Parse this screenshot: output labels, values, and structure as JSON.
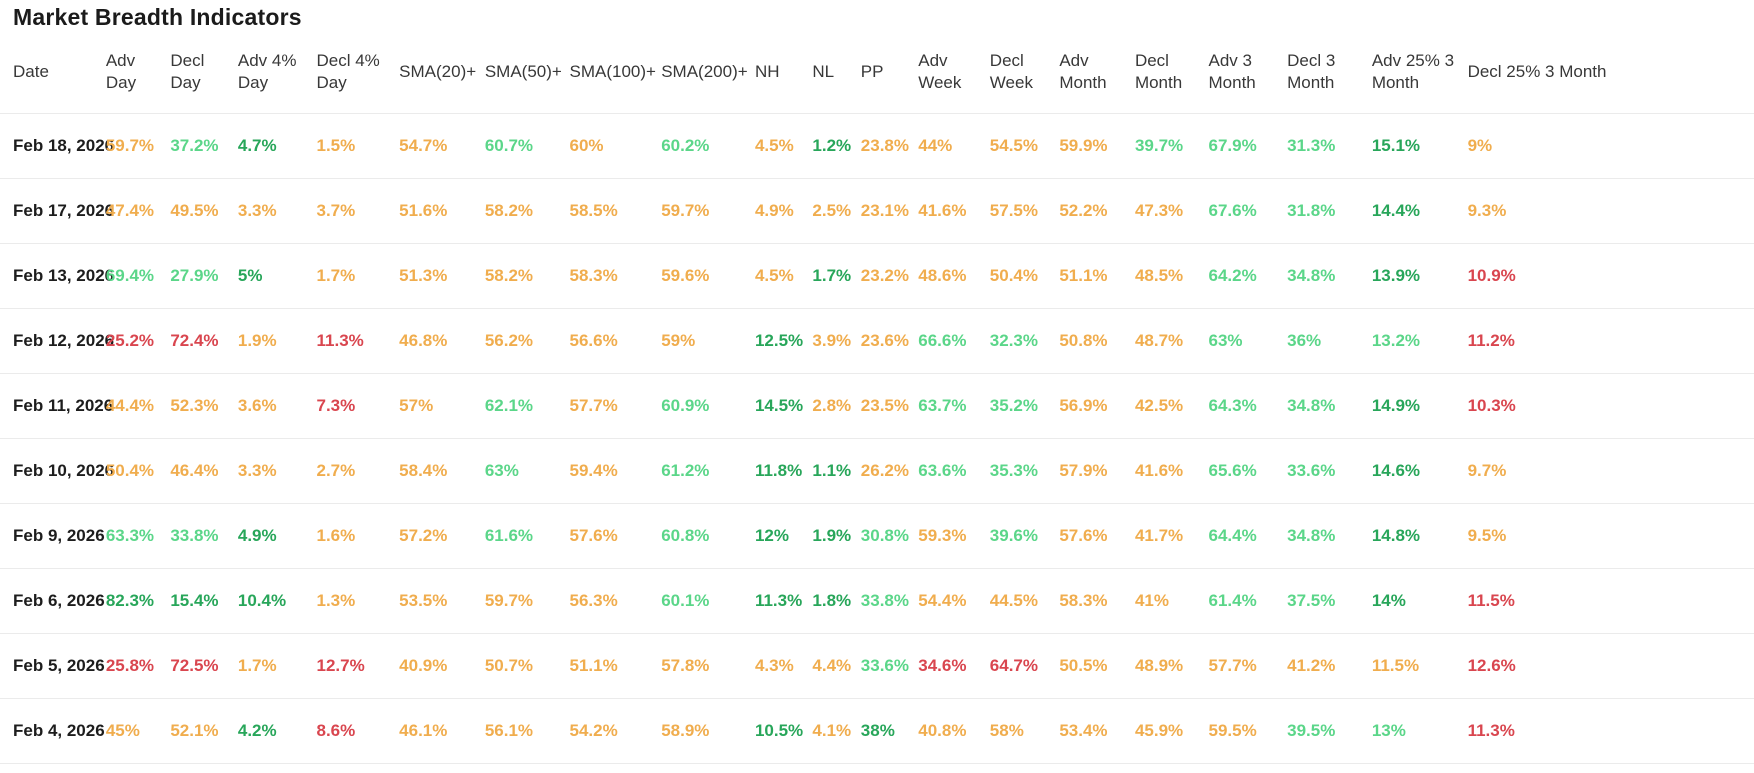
{
  "page_title": "Market Breadth Indicators",
  "colors": {
    "r": "#d9464f",
    "o": "#f0ad4e",
    "g": "#5bd689",
    "G": "#28a65a",
    "date_text": "#1d1d1d",
    "header_text": "#383838",
    "title_text": "#1b1b1b",
    "divider": "#ebebeb",
    "background": "#ffffff"
  },
  "chart_data": {
    "type": "table",
    "title": "Market Breadth Indicators",
    "columns": [
      "Date",
      "Adv Day",
      "Decl Day",
      "Adv 4% Day",
      "Decl 4% Day",
      "SMA(20)+",
      "SMA(50)+",
      "SMA(100)+",
      "SMA(200)+",
      "NH",
      "NL",
      "PP",
      "Adv Week",
      "Decl Week",
      "Adv Month",
      "Decl Month",
      "Adv 3 Month",
      "Decl 3 Month",
      "Adv 25% 3 Month",
      "Decl 25% 3 Month"
    ],
    "color_legend": {
      "r": "red (bearish)",
      "o": "orange (neutral)",
      "g": "light green (bullish)",
      "G": "dark green (strong bullish)"
    },
    "rows": [
      {
        "date": "Feb 18, 2026",
        "cells": [
          [
            "59.7%",
            "o"
          ],
          [
            "37.2%",
            "g"
          ],
          [
            "4.7%",
            "G"
          ],
          [
            "1.5%",
            "o"
          ],
          [
            "54.7%",
            "o"
          ],
          [
            "60.7%",
            "g"
          ],
          [
            "60%",
            "o"
          ],
          [
            "60.2%",
            "g"
          ],
          [
            "4.5%",
            "o"
          ],
          [
            "1.2%",
            "G"
          ],
          [
            "23.8%",
            "o"
          ],
          [
            "44%",
            "o"
          ],
          [
            "54.5%",
            "o"
          ],
          [
            "59.9%",
            "o"
          ],
          [
            "39.7%",
            "g"
          ],
          [
            "67.9%",
            "g"
          ],
          [
            "31.3%",
            "g"
          ],
          [
            "15.1%",
            "G"
          ],
          [
            "9%",
            "o"
          ]
        ]
      },
      {
        "date": "Feb 17, 2026",
        "cells": [
          [
            "47.4%",
            "o"
          ],
          [
            "49.5%",
            "o"
          ],
          [
            "3.3%",
            "o"
          ],
          [
            "3.7%",
            "o"
          ],
          [
            "51.6%",
            "o"
          ],
          [
            "58.2%",
            "o"
          ],
          [
            "58.5%",
            "o"
          ],
          [
            "59.7%",
            "o"
          ],
          [
            "4.9%",
            "o"
          ],
          [
            "2.5%",
            "o"
          ],
          [
            "23.1%",
            "o"
          ],
          [
            "41.6%",
            "o"
          ],
          [
            "57.5%",
            "o"
          ],
          [
            "52.2%",
            "o"
          ],
          [
            "47.3%",
            "o"
          ],
          [
            "67.6%",
            "g"
          ],
          [
            "31.8%",
            "g"
          ],
          [
            "14.4%",
            "G"
          ],
          [
            "9.3%",
            "o"
          ]
        ]
      },
      {
        "date": "Feb 13, 2026",
        "cells": [
          [
            "69.4%",
            "g"
          ],
          [
            "27.9%",
            "g"
          ],
          [
            "5%",
            "G"
          ],
          [
            "1.7%",
            "o"
          ],
          [
            "51.3%",
            "o"
          ],
          [
            "58.2%",
            "o"
          ],
          [
            "58.3%",
            "o"
          ],
          [
            "59.6%",
            "o"
          ],
          [
            "4.5%",
            "o"
          ],
          [
            "1.7%",
            "G"
          ],
          [
            "23.2%",
            "o"
          ],
          [
            "48.6%",
            "o"
          ],
          [
            "50.4%",
            "o"
          ],
          [
            "51.1%",
            "o"
          ],
          [
            "48.5%",
            "o"
          ],
          [
            "64.2%",
            "g"
          ],
          [
            "34.8%",
            "g"
          ],
          [
            "13.9%",
            "G"
          ],
          [
            "10.9%",
            "r"
          ]
        ]
      },
      {
        "date": "Feb 12, 2026",
        "cells": [
          [
            "25.2%",
            "r"
          ],
          [
            "72.4%",
            "r"
          ],
          [
            "1.9%",
            "o"
          ],
          [
            "11.3%",
            "r"
          ],
          [
            "46.8%",
            "o"
          ],
          [
            "56.2%",
            "o"
          ],
          [
            "56.6%",
            "o"
          ],
          [
            "59%",
            "o"
          ],
          [
            "12.5%",
            "G"
          ],
          [
            "3.9%",
            "o"
          ],
          [
            "23.6%",
            "o"
          ],
          [
            "66.6%",
            "g"
          ],
          [
            "32.3%",
            "g"
          ],
          [
            "50.8%",
            "o"
          ],
          [
            "48.7%",
            "o"
          ],
          [
            "63%",
            "g"
          ],
          [
            "36%",
            "g"
          ],
          [
            "13.2%",
            "g"
          ],
          [
            "11.2%",
            "r"
          ]
        ]
      },
      {
        "date": "Feb 11, 2026",
        "cells": [
          [
            "44.4%",
            "o"
          ],
          [
            "52.3%",
            "o"
          ],
          [
            "3.6%",
            "o"
          ],
          [
            "7.3%",
            "r"
          ],
          [
            "57%",
            "o"
          ],
          [
            "62.1%",
            "g"
          ],
          [
            "57.7%",
            "o"
          ],
          [
            "60.9%",
            "g"
          ],
          [
            "14.5%",
            "G"
          ],
          [
            "2.8%",
            "o"
          ],
          [
            "23.5%",
            "o"
          ],
          [
            "63.7%",
            "g"
          ],
          [
            "35.2%",
            "g"
          ],
          [
            "56.9%",
            "o"
          ],
          [
            "42.5%",
            "o"
          ],
          [
            "64.3%",
            "g"
          ],
          [
            "34.8%",
            "g"
          ],
          [
            "14.9%",
            "G"
          ],
          [
            "10.3%",
            "r"
          ]
        ]
      },
      {
        "date": "Feb 10, 2026",
        "cells": [
          [
            "50.4%",
            "o"
          ],
          [
            "46.4%",
            "o"
          ],
          [
            "3.3%",
            "o"
          ],
          [
            "2.7%",
            "o"
          ],
          [
            "58.4%",
            "o"
          ],
          [
            "63%",
            "g"
          ],
          [
            "59.4%",
            "o"
          ],
          [
            "61.2%",
            "g"
          ],
          [
            "11.8%",
            "G"
          ],
          [
            "1.1%",
            "G"
          ],
          [
            "26.2%",
            "o"
          ],
          [
            "63.6%",
            "g"
          ],
          [
            "35.3%",
            "g"
          ],
          [
            "57.9%",
            "o"
          ],
          [
            "41.6%",
            "o"
          ],
          [
            "65.6%",
            "g"
          ],
          [
            "33.6%",
            "g"
          ],
          [
            "14.6%",
            "G"
          ],
          [
            "9.7%",
            "o"
          ]
        ]
      },
      {
        "date": "Feb 9, 2026",
        "cells": [
          [
            "63.3%",
            "g"
          ],
          [
            "33.8%",
            "g"
          ],
          [
            "4.9%",
            "G"
          ],
          [
            "1.6%",
            "o"
          ],
          [
            "57.2%",
            "o"
          ],
          [
            "61.6%",
            "g"
          ],
          [
            "57.6%",
            "o"
          ],
          [
            "60.8%",
            "g"
          ],
          [
            "12%",
            "G"
          ],
          [
            "1.9%",
            "G"
          ],
          [
            "30.8%",
            "g"
          ],
          [
            "59.3%",
            "o"
          ],
          [
            "39.6%",
            "g"
          ],
          [
            "57.6%",
            "o"
          ],
          [
            "41.7%",
            "o"
          ],
          [
            "64.4%",
            "g"
          ],
          [
            "34.8%",
            "g"
          ],
          [
            "14.8%",
            "G"
          ],
          [
            "9.5%",
            "o"
          ]
        ]
      },
      {
        "date": "Feb 6, 2026",
        "cells": [
          [
            "82.3%",
            "G"
          ],
          [
            "15.4%",
            "G"
          ],
          [
            "10.4%",
            "G"
          ],
          [
            "1.3%",
            "o"
          ],
          [
            "53.5%",
            "o"
          ],
          [
            "59.7%",
            "o"
          ],
          [
            "56.3%",
            "o"
          ],
          [
            "60.1%",
            "g"
          ],
          [
            "11.3%",
            "G"
          ],
          [
            "1.8%",
            "G"
          ],
          [
            "33.8%",
            "g"
          ],
          [
            "54.4%",
            "o"
          ],
          [
            "44.5%",
            "o"
          ],
          [
            "58.3%",
            "o"
          ],
          [
            "41%",
            "o"
          ],
          [
            "61.4%",
            "g"
          ],
          [
            "37.5%",
            "g"
          ],
          [
            "14%",
            "G"
          ],
          [
            "11.5%",
            "r"
          ]
        ]
      },
      {
        "date": "Feb 5, 2026",
        "cells": [
          [
            "25.8%",
            "r"
          ],
          [
            "72.5%",
            "r"
          ],
          [
            "1.7%",
            "o"
          ],
          [
            "12.7%",
            "r"
          ],
          [
            "40.9%",
            "o"
          ],
          [
            "50.7%",
            "o"
          ],
          [
            "51.1%",
            "o"
          ],
          [
            "57.8%",
            "o"
          ],
          [
            "4.3%",
            "o"
          ],
          [
            "4.4%",
            "o"
          ],
          [
            "33.6%",
            "g"
          ],
          [
            "34.6%",
            "r"
          ],
          [
            "64.7%",
            "r"
          ],
          [
            "50.5%",
            "o"
          ],
          [
            "48.9%",
            "o"
          ],
          [
            "57.7%",
            "o"
          ],
          [
            "41.2%",
            "o"
          ],
          [
            "11.5%",
            "o"
          ],
          [
            "12.6%",
            "r"
          ]
        ]
      },
      {
        "date": "Feb 4, 2026",
        "cells": [
          [
            "45%",
            "o"
          ],
          [
            "52.1%",
            "o"
          ],
          [
            "4.2%",
            "G"
          ],
          [
            "8.6%",
            "r"
          ],
          [
            "46.1%",
            "o"
          ],
          [
            "56.1%",
            "o"
          ],
          [
            "54.2%",
            "o"
          ],
          [
            "58.9%",
            "o"
          ],
          [
            "10.5%",
            "G"
          ],
          [
            "4.1%",
            "o"
          ],
          [
            "38%",
            "G"
          ],
          [
            "40.8%",
            "o"
          ],
          [
            "58%",
            "o"
          ],
          [
            "53.4%",
            "o"
          ],
          [
            "45.9%",
            "o"
          ],
          [
            "59.5%",
            "o"
          ],
          [
            "39.5%",
            "g"
          ],
          [
            "13%",
            "g"
          ],
          [
            "11.3%",
            "r"
          ]
        ]
      }
    ]
  }
}
